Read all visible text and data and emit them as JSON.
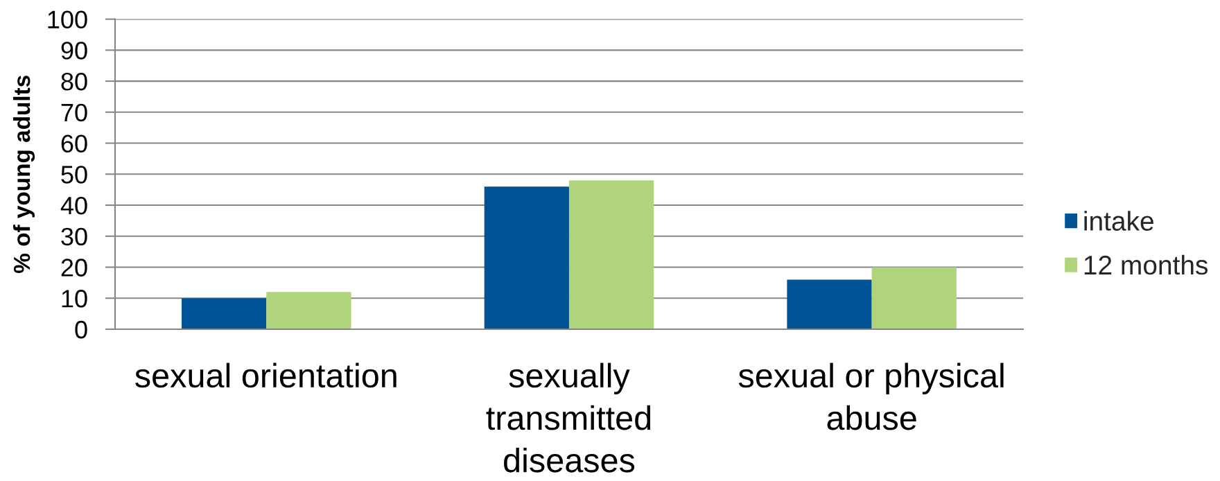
{
  "chart_data": {
    "type": "bar",
    "ylabel": "% of young adults",
    "categories": [
      "sexual orientation",
      "sexually\ntransmitted\ndiseases",
      "sexual or physical\nabuse"
    ],
    "series": [
      {
        "name": "intake",
        "color": "#005496",
        "values": [
          10,
          46,
          16
        ]
      },
      {
        "name": "12 months",
        "color": "#afd47b",
        "values": [
          12,
          48,
          20
        ]
      }
    ],
    "ylim": [
      0,
      100
    ],
    "yticks": [
      0,
      10,
      20,
      30,
      40,
      50,
      60,
      70,
      80,
      90,
      100
    ],
    "grid": "y",
    "legend": "right"
  }
}
